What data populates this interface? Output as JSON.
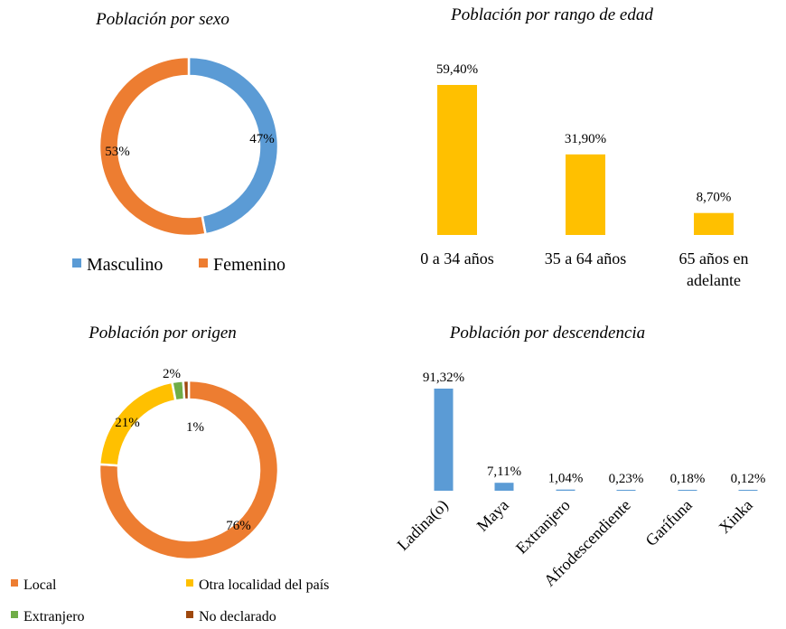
{
  "chart_data": [
    {
      "type": "donut",
      "title": "Población por sexo",
      "categories": [
        "Masculino",
        "Femenino"
      ],
      "values": [
        47,
        53
      ],
      "labels": [
        "47%",
        "53%"
      ],
      "colors": [
        "#5B9BD5",
        "#ED7D31"
      ],
      "legend": "bottom"
    },
    {
      "type": "bar",
      "title": "Población por rango de edad",
      "categories": [
        "0 a 34 años",
        "35 a 64 años",
        "65 años en adelante"
      ],
      "category_lines": [
        [
          "0 a 34 años"
        ],
        [
          "35 a 64 años"
        ],
        [
          "65 años en",
          "adelante"
        ]
      ],
      "values": [
        59.4,
        31.9,
        8.7
      ],
      "labels": [
        "59,40%",
        "31,90%",
        "8,70%"
      ],
      "color": "#FFC000"
    },
    {
      "type": "donut",
      "title": "Población por origen",
      "categories": [
        "Local",
        "Otra localidad del país",
        "Extranjero",
        "No declarado"
      ],
      "values": [
        76,
        21,
        2,
        1
      ],
      "labels": [
        "76%",
        "21%",
        "2%",
        "1%"
      ],
      "colors": [
        "#ED7D31",
        "#FFC000",
        "#70AD47",
        "#9E480E"
      ],
      "legend": "bottom"
    },
    {
      "type": "bar",
      "title": "Población por descendencia",
      "categories": [
        "Ladina(o)",
        "Maya",
        "Extranjero",
        "Afrodescendiente",
        "Garífuna",
        "Xinka"
      ],
      "values": [
        91.32,
        7.11,
        1.04,
        0.23,
        0.18,
        0.12
      ],
      "labels": [
        "91,32%",
        "7,11%",
        "1,04%",
        "0,23%",
        "0,18%",
        "0,12%"
      ],
      "color": "#5B9BD5"
    }
  ]
}
